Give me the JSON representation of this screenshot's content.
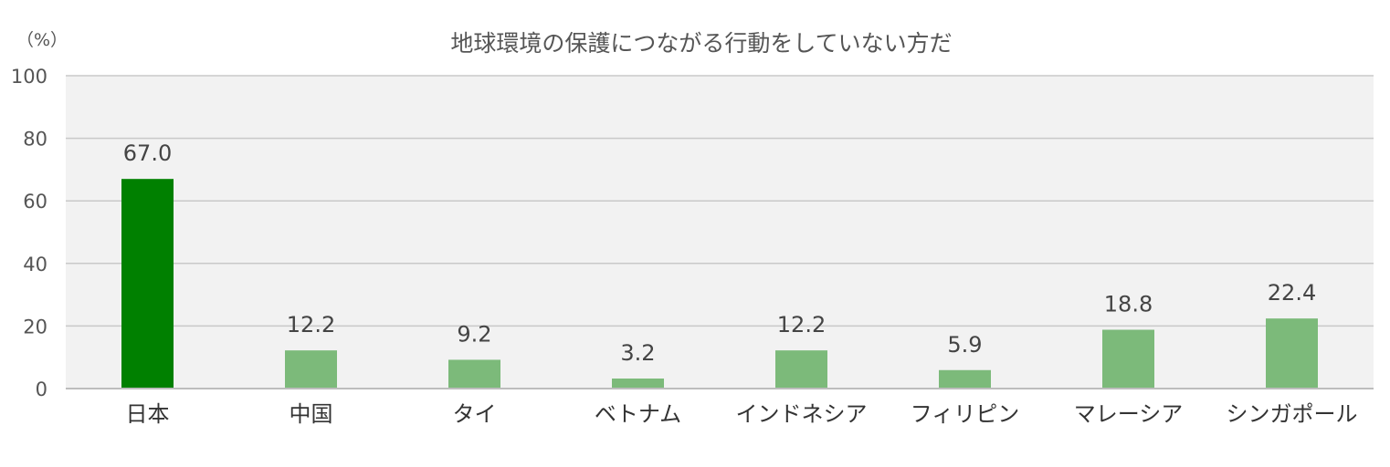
{
  "chart_data": {
    "type": "bar",
    "title": "地球環境の保護につながる行動をしていない方だ",
    "ylabel": "（%）",
    "xlabel": "",
    "ylim": [
      0,
      100
    ],
    "yticks": [
      0,
      20,
      40,
      60,
      80,
      100
    ],
    "grid": true,
    "categories": [
      "日本",
      "中国",
      "タイ",
      "ベトナム",
      "インドネシア",
      "フィリピン",
      "マレーシア",
      "シンガポール"
    ],
    "values": [
      67.0,
      12.2,
      9.2,
      3.2,
      12.2,
      5.9,
      18.8,
      22.4
    ],
    "value_labels": [
      "67.0",
      "12.2",
      "9.2",
      "3.2",
      "12.2",
      "5.9",
      "18.8",
      "22.4"
    ],
    "colors": {
      "highlight": "#008000",
      "bar": "#7cba7a",
      "plot_background": "#f2f2f2"
    },
    "highlight_index": 0
  }
}
